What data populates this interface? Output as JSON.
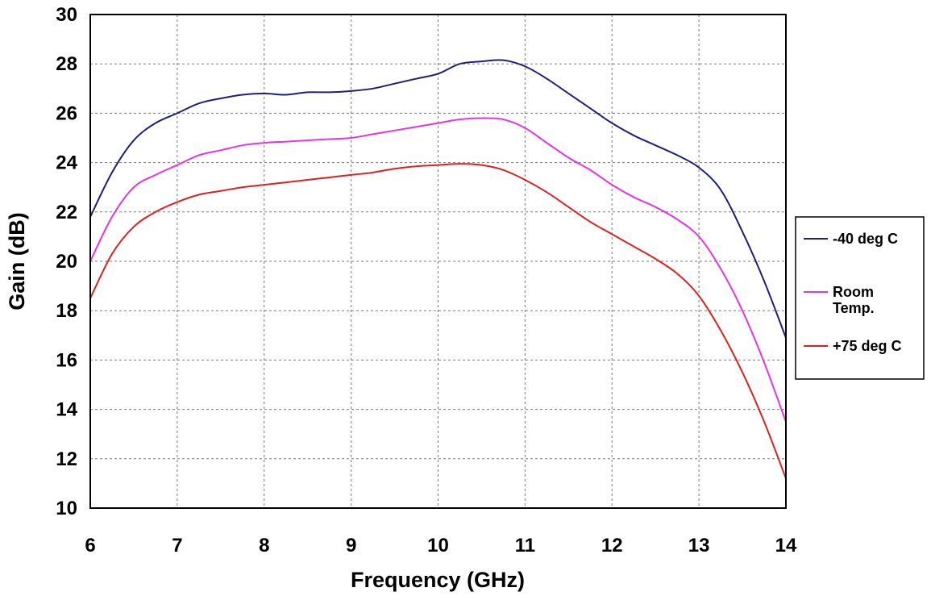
{
  "chart_data": {
    "type": "line",
    "title": "",
    "xlabel": "Frequency (GHz)",
    "ylabel": "Gain (dB)",
    "xlim": [
      6,
      14
    ],
    "ylim": [
      10,
      30
    ],
    "xticks": [
      6,
      7,
      8,
      9,
      10,
      11,
      12,
      13,
      14
    ],
    "yticks": [
      10,
      12,
      14,
      16,
      18,
      20,
      22,
      24,
      26,
      28,
      30
    ],
    "grid": true,
    "legend_position": "right",
    "x": [
      6.0,
      6.25,
      6.5,
      6.75,
      7.0,
      7.25,
      7.5,
      7.75,
      8.0,
      8.25,
      8.5,
      8.75,
      9.0,
      9.25,
      9.5,
      9.75,
      10.0,
      10.25,
      10.5,
      10.75,
      11.0,
      11.25,
      11.5,
      11.75,
      12.0,
      12.25,
      12.5,
      12.75,
      13.0,
      13.25,
      13.5,
      13.75,
      14.0
    ],
    "series": [
      {
        "name": "-40 deg C",
        "label_lines": [
          "-40 deg C"
        ],
        "color": "#1f1f7a",
        "values": [
          21.8,
          23.6,
          24.9,
          25.6,
          26.0,
          26.4,
          26.6,
          26.75,
          26.8,
          26.75,
          26.85,
          26.85,
          26.9,
          27.0,
          27.2,
          27.4,
          27.6,
          28.0,
          28.1,
          28.15,
          27.9,
          27.4,
          26.8,
          26.2,
          25.6,
          25.1,
          24.7,
          24.3,
          23.8,
          22.9,
          21.2,
          19.2,
          16.9
        ]
      },
      {
        "name": "Room Temp.",
        "label_lines": [
          "Room",
          "Temp."
        ],
        "color": "#e633e6",
        "values": [
          20.0,
          21.8,
          23.0,
          23.5,
          23.9,
          24.3,
          24.5,
          24.7,
          24.8,
          24.85,
          24.9,
          24.95,
          25.0,
          25.15,
          25.3,
          25.45,
          25.6,
          25.75,
          25.8,
          25.75,
          25.4,
          24.8,
          24.2,
          23.7,
          23.1,
          22.6,
          22.2,
          21.7,
          21.0,
          19.7,
          18.0,
          15.9,
          13.5
        ]
      },
      {
        "name": "+75 deg C",
        "label_lines": [
          "+75 deg C"
        ],
        "color": "#e02020",
        "values": [
          18.5,
          20.3,
          21.4,
          22.0,
          22.4,
          22.7,
          22.85,
          23.0,
          23.1,
          23.2,
          23.3,
          23.4,
          23.5,
          23.6,
          23.75,
          23.85,
          23.9,
          23.95,
          23.9,
          23.7,
          23.3,
          22.8,
          22.2,
          21.6,
          21.1,
          20.6,
          20.1,
          19.5,
          18.6,
          17.2,
          15.5,
          13.5,
          11.2
        ]
      }
    ]
  }
}
